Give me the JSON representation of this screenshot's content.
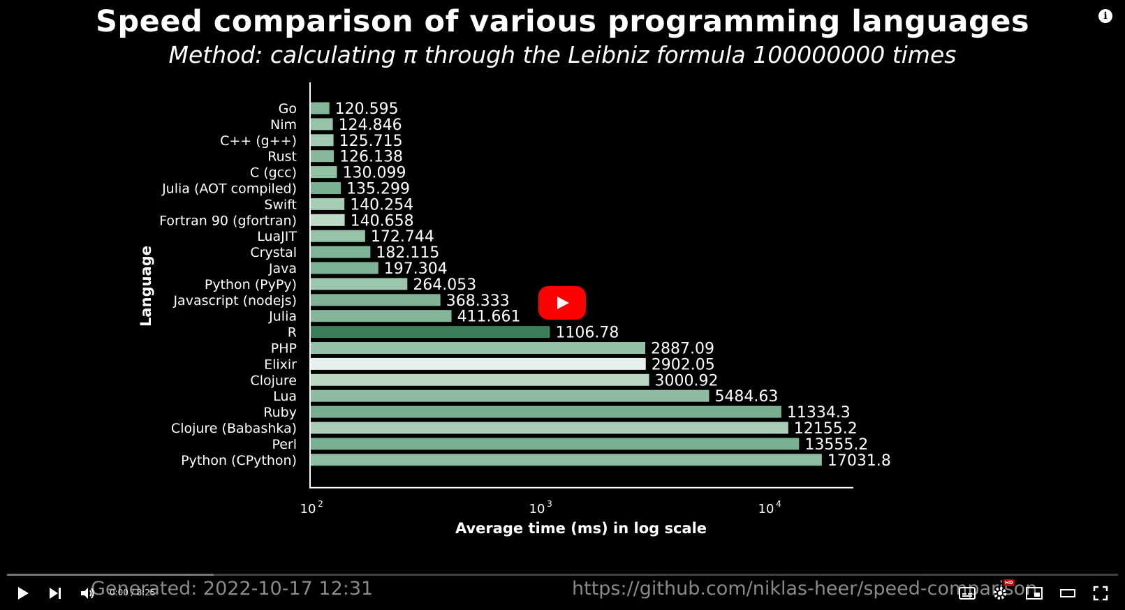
{
  "chart_data": {
    "type": "bar",
    "orientation": "horizontal",
    "title": "Speed comparison of various programming languages",
    "subtitle": "Method: calculating π through the Leibniz formula 100000000 times",
    "xlabel": "Average time (ms) in log scale",
    "ylabel": "Language",
    "x_scale": "log",
    "xlim": [
      100,
      21000
    ],
    "x_ticks": [
      100,
      1000,
      10000
    ],
    "x_tick_labels": [
      "10",
      "10",
      "10"
    ],
    "x_tick_exponents": [
      "2",
      "3",
      "4"
    ],
    "categories": [
      "Go",
      "Nim",
      "C++ (g++)",
      "Rust",
      "C (gcc)",
      "Julia (AOT compiled)",
      "Swift",
      "Fortran 90 (gfortran)",
      "LuaJIT",
      "Crystal",
      "Java",
      "Python (PyPy)",
      "Javascript (nodejs)",
      "Julia",
      "R",
      "PHP",
      "Elixir",
      "Clojure",
      "Lua",
      "Ruby",
      "Clojure (Babashka)",
      "Perl",
      "Python (CPython)"
    ],
    "values": [
      120.595,
      124.846,
      125.715,
      126.138,
      130.099,
      135.299,
      140.254,
      140.658,
      172.744,
      182.115,
      197.304,
      264.053,
      368.333,
      411.661,
      1106.78,
      2887.09,
      2902.05,
      3000.92,
      5484.63,
      11334.3,
      12155.2,
      13555.2,
      17031.8
    ],
    "value_labels": [
      "120.595",
      "124.846",
      "125.715",
      "126.138",
      "130.099",
      "135.299",
      "140.254",
      "140.658",
      "172.744",
      "182.115",
      "197.304",
      "264.053",
      "368.333",
      "411.661",
      "1106.78",
      "2887.09",
      "2902.05",
      "3000.92",
      "5484.63",
      "11334.3",
      "12155.2",
      "13555.2",
      "17031.8"
    ],
    "colors": [
      "#84b79a",
      "#97c4a8",
      "#a3c9b1",
      "#86b89a",
      "#92c2a4",
      "#7ab092",
      "#a6ccb4",
      "#bfd9c8",
      "#97c3a8",
      "#80b497",
      "#7db294",
      "#9cc6ac",
      "#7fb296",
      "#84b69a",
      "#3d7d58",
      "#93c1a5",
      "#e8f2ec",
      "#b9d6c3",
      "#8dbca0",
      "#79af91",
      "#a9cdb6",
      "#7aaf91",
      "#8fbfa2"
    ],
    "grid": false,
    "legend": "none"
  },
  "player": {
    "generated_text": "Generated: 2022-10-17 12:31",
    "url_text": "https://github.com/niklas-heer/speed-comparison",
    "time_text": "0:00 / 8:25",
    "progress_loaded": 0.186,
    "hd_badge": "HD",
    "icons": [
      "play-icon",
      "next-icon",
      "volume-icon",
      "subtitles-icon",
      "settings-icon",
      "miniplayer-icon",
      "theater-icon",
      "fullscreen-icon",
      "info-icon",
      "youtube-play-icon"
    ]
  }
}
